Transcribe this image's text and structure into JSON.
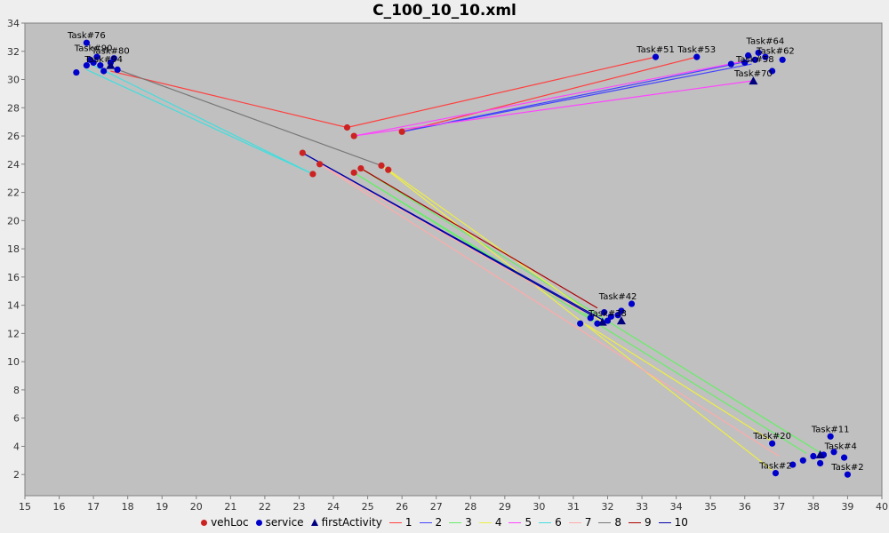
{
  "chart_data": {
    "type": "scatter",
    "title": "C_100_10_10.xml",
    "xlabel": "",
    "ylabel": "",
    "xlim": [
      15,
      40
    ],
    "ylim": [
      0.5,
      34
    ],
    "xticks": [
      15,
      16,
      17,
      18,
      19,
      20,
      21,
      22,
      23,
      24,
      25,
      26,
      27,
      28,
      29,
      30,
      31,
      32,
      33,
      34,
      35,
      36,
      37,
      38,
      39,
      40
    ],
    "yticks": [
      2,
      4,
      6,
      8,
      10,
      12,
      14,
      16,
      18,
      20,
      22,
      24,
      26,
      28,
      30,
      32,
      34
    ],
    "grid": false,
    "legend_position": "bottom",
    "colors": {
      "plot_bg": "#c0c0c0",
      "vehLoc": "#cc2222",
      "service": "#0000cc",
      "firstActivity": "#000080"
    },
    "legend": [
      "vehLoc",
      "service",
      "firstActivity",
      "1",
      "2",
      "3",
      "4",
      "5",
      "6",
      "7",
      "8",
      "9",
      "10"
    ],
    "vehLoc": [
      [
        24.4,
        26.6
      ],
      [
        24.6,
        26.0
      ],
      [
        26.0,
        26.3
      ],
      [
        23.1,
        24.8
      ],
      [
        23.6,
        24.0
      ],
      [
        23.4,
        23.3
      ],
      [
        24.6,
        23.4
      ],
      [
        24.8,
        23.7
      ],
      [
        25.4,
        23.9
      ],
      [
        25.6,
        23.6
      ]
    ],
    "service": [
      [
        16.8,
        32.6
      ],
      [
        16.5,
        30.5
      ],
      [
        16.8,
        31.0
      ],
      [
        17.0,
        31.2
      ],
      [
        17.2,
        31.0
      ],
      [
        17.3,
        30.6
      ],
      [
        17.5,
        31.2
      ],
      [
        17.7,
        30.7
      ],
      [
        17.1,
        31.6
      ],
      [
        17.6,
        31.5
      ],
      [
        16.9,
        31.4
      ],
      [
        33.4,
        31.6
      ],
      [
        34.6,
        31.6
      ],
      [
        35.6,
        31.1
      ],
      [
        36.0,
        31.2
      ],
      [
        36.3,
        31.4
      ],
      [
        36.6,
        31.6
      ],
      [
        36.8,
        30.6
      ],
      [
        37.1,
        31.4
      ],
      [
        36.4,
        31.9
      ],
      [
        36.1,
        31.7
      ],
      [
        31.2,
        12.7
      ],
      [
        31.7,
        12.7
      ],
      [
        32.1,
        13.2
      ],
      [
        32.4,
        13.6
      ],
      [
        32.7,
        14.1
      ],
      [
        31.9,
        13.5
      ],
      [
        32.0,
        12.9
      ],
      [
        31.5,
        13.1
      ],
      [
        32.3,
        13.3
      ],
      [
        36.8,
        4.2
      ],
      [
        36.9,
        2.1
      ],
      [
        37.4,
        2.7
      ],
      [
        37.7,
        3.0
      ],
      [
        38.0,
        3.3
      ],
      [
        38.2,
        2.8
      ],
      [
        38.5,
        4.7
      ],
      [
        38.6,
        3.6
      ],
      [
        38.9,
        3.2
      ],
      [
        39.0,
        2.0
      ],
      [
        38.3,
        3.4
      ]
    ],
    "firstActivity": [
      [
        17.5,
        31.0
      ],
      [
        36.25,
        29.9
      ],
      [
        31.85,
        12.8
      ],
      [
        32.4,
        12.9
      ],
      [
        38.2,
        3.4
      ]
    ],
    "task_labels": [
      {
        "text": "Task#76",
        "x": 16.8,
        "y": 32.6
      },
      {
        "text": "Task#90",
        "x": 17.0,
        "y": 31.7
      },
      {
        "text": "Task#80",
        "x": 17.5,
        "y": 31.5
      },
      {
        "text": "Task#94",
        "x": 17.3,
        "y": 30.9
      },
      {
        "text": "Task#51",
        "x": 33.4,
        "y": 31.6
      },
      {
        "text": "Task#53",
        "x": 34.6,
        "y": 31.6
      },
      {
        "text": "Task#64",
        "x": 36.6,
        "y": 32.2
      },
      {
        "text": "Task#62",
        "x": 36.9,
        "y": 31.5
      },
      {
        "text": "Task#58",
        "x": 36.3,
        "y": 30.9
      },
      {
        "text": "Task#70",
        "x": 36.25,
        "y": 29.9
      },
      {
        "text": "Task#42",
        "x": 32.3,
        "y": 14.1
      },
      {
        "text": "Task#38",
        "x": 32.0,
        "y": 12.9
      },
      {
        "text": "Task#20",
        "x": 36.8,
        "y": 4.2
      },
      {
        "text": "Task#11",
        "x": 38.5,
        "y": 4.7
      },
      {
        "text": "Task#4",
        "x": 38.8,
        "y": 3.5
      },
      {
        "text": "Task#2",
        "x": 36.9,
        "y": 2.1
      },
      {
        "text": "Task#2",
        "x": 39.0,
        "y": 2.0
      }
    ],
    "routes": [
      {
        "name": "1",
        "color": "#ff4040",
        "points": [
          [
            26.0,
            26.3
          ],
          [
            34.6,
            31.6
          ]
        ]
      },
      {
        "name": "1",
        "color": "#ff4040",
        "points": [
          [
            24.4,
            26.6
          ],
          [
            33.4,
            31.6
          ]
        ]
      },
      {
        "name": "1",
        "color": "#ff4040",
        "points": [
          [
            24.4,
            26.6
          ],
          [
            17.5,
            30.6
          ]
        ]
      },
      {
        "name": "2",
        "color": "#4444ff",
        "points": [
          [
            26.0,
            26.3
          ],
          [
            36.3,
            31.4
          ]
        ]
      },
      {
        "name": "2",
        "color": "#4444ff",
        "points": [
          [
            26.0,
            26.3
          ],
          [
            36.2,
            31.1
          ]
        ]
      },
      {
        "name": "3",
        "color": "#66ee66",
        "points": [
          [
            24.8,
            23.7
          ],
          [
            38.3,
            3.4
          ]
        ]
      },
      {
        "name": "3",
        "color": "#66ee66",
        "points": [
          [
            24.6,
            23.4
          ],
          [
            37.8,
            3.5
          ]
        ]
      },
      {
        "name": "3",
        "color": "#66ee66",
        "points": [
          [
            24.6,
            23.4
          ],
          [
            31.6,
            13.0
          ]
        ]
      },
      {
        "name": "4",
        "color": "#eeee44",
        "points": [
          [
            25.4,
            23.9
          ],
          [
            36.8,
            2.3
          ]
        ]
      },
      {
        "name": "4",
        "color": "#eeee44",
        "points": [
          [
            25.6,
            23.6
          ],
          [
            31.8,
            12.9
          ]
        ]
      },
      {
        "name": "4",
        "color": "#eeee44",
        "points": [
          [
            31.4,
            12.6
          ],
          [
            36.9,
            4.2
          ]
        ]
      },
      {
        "name": "5",
        "color": "#ff44ff",
        "points": [
          [
            24.6,
            26.0
          ],
          [
            36.2,
            29.9
          ]
        ]
      },
      {
        "name": "5",
        "color": "#ff44ff",
        "points": [
          [
            24.6,
            26.0
          ],
          [
            36.0,
            31.3
          ]
        ]
      },
      {
        "name": "6",
        "color": "#44dddd",
        "points": [
          [
            23.4,
            23.3
          ],
          [
            17.0,
            31.0
          ]
        ]
      },
      {
        "name": "6",
        "color": "#44dddd",
        "points": [
          [
            23.4,
            23.3
          ],
          [
            16.8,
            30.7
          ]
        ]
      },
      {
        "name": "7",
        "color": "#ffaaaa",
        "points": [
          [
            23.6,
            24.0
          ],
          [
            37.0,
            3.3
          ]
        ]
      },
      {
        "name": "7",
        "color": "#ffaaaa",
        "points": [
          [
            23.6,
            24.0
          ],
          [
            31.3,
            13.5
          ]
        ]
      },
      {
        "name": "8",
        "color": "#777777",
        "points": [
          [
            25.4,
            23.9
          ],
          [
            17.6,
            30.8
          ]
        ]
      },
      {
        "name": "9",
        "color": "#aa0000",
        "points": [
          [
            24.8,
            23.7
          ],
          [
            31.7,
            13.8
          ]
        ]
      },
      {
        "name": "10",
        "color": "#0000aa",
        "points": [
          [
            23.1,
            24.8
          ],
          [
            31.9,
            12.9
          ]
        ]
      },
      {
        "name": "10",
        "color": "#0000aa",
        "points": [
          [
            23.1,
            24.8
          ],
          [
            31.6,
            13.2
          ]
        ]
      }
    ]
  },
  "legend_items": [
    {
      "label": "vehLoc",
      "kind": "dot",
      "color": "#cc2222"
    },
    {
      "label": "service",
      "kind": "dot",
      "color": "#0000cc"
    },
    {
      "label": "firstActivity",
      "kind": "tri",
      "color": "#000080"
    },
    {
      "label": "1",
      "kind": "line",
      "color": "#ff4040"
    },
    {
      "label": "2",
      "kind": "line",
      "color": "#4444ff"
    },
    {
      "label": "3",
      "kind": "line",
      "color": "#66ee66"
    },
    {
      "label": "4",
      "kind": "line",
      "color": "#eeee44"
    },
    {
      "label": "5",
      "kind": "line",
      "color": "#ff44ff"
    },
    {
      "label": "6",
      "kind": "line",
      "color": "#44dddd"
    },
    {
      "label": "7",
      "kind": "line",
      "color": "#ffaaaa"
    },
    {
      "label": "8",
      "kind": "line",
      "color": "#777777"
    },
    {
      "label": "9",
      "kind": "line",
      "color": "#aa0000"
    },
    {
      "label": "10",
      "kind": "line",
      "color": "#0000aa"
    }
  ]
}
